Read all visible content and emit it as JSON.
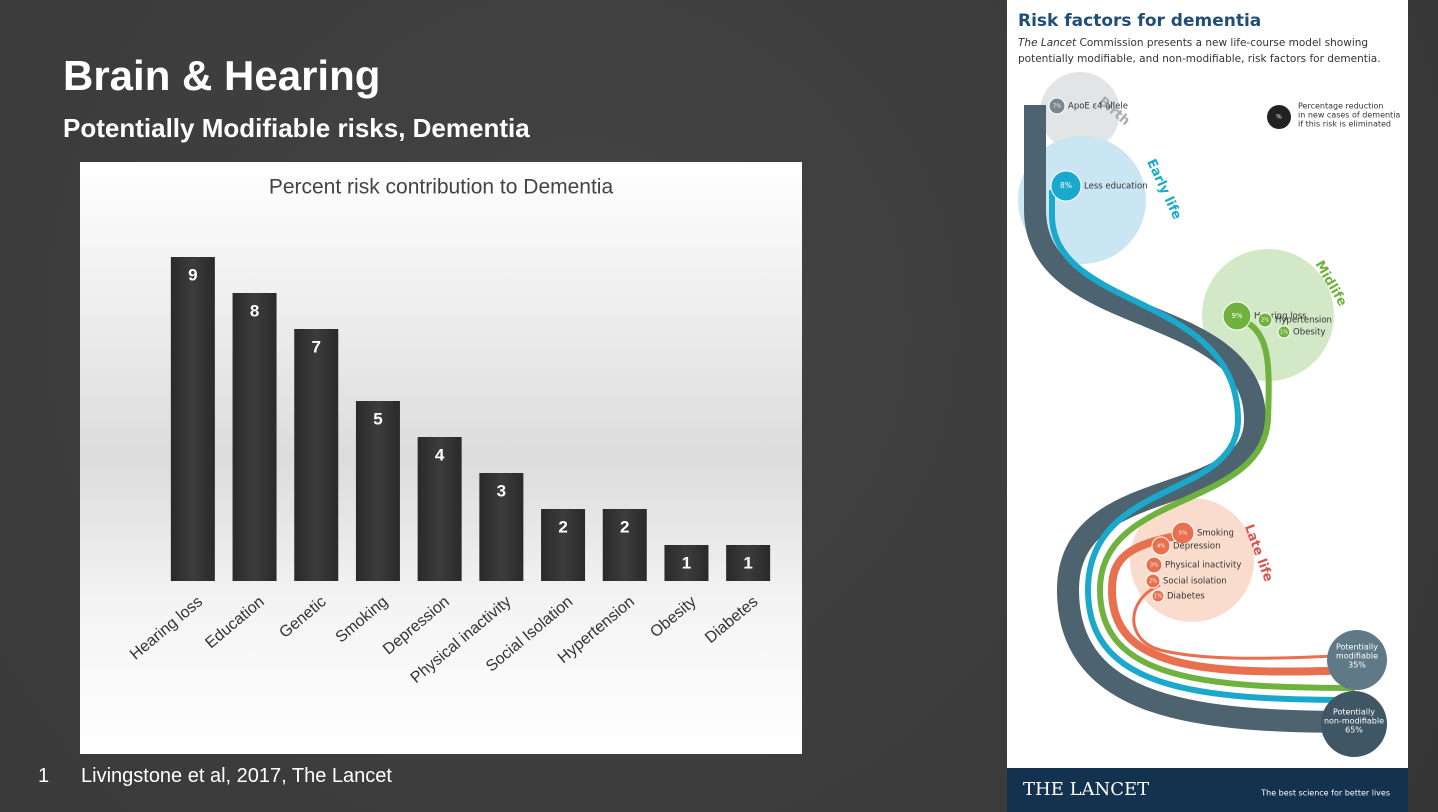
{
  "slide": {
    "title": "Brain & Hearing",
    "subtitle": "Potentially Modifiable risks, Dementia",
    "footnote_number": "1",
    "footnote": "Livingstone et al, 2017, The Lancet"
  },
  "chart_data": {
    "type": "bar",
    "title": "Percent risk contribution to Dementia",
    "categories": [
      "Hearing loss",
      "Education",
      "Genetic",
      "Smoking",
      "Depression",
      "Physical inactivity",
      "Social Isolation",
      "Hypertension",
      "Obesity",
      "Diabetes"
    ],
    "values": [
      9,
      8,
      7,
      5,
      4,
      3,
      2,
      2,
      1,
      1
    ],
    "color": "#333333"
  },
  "infographic": {
    "title": "Risk factors for dementia",
    "intro": {
      "italic": "The Lancet",
      "lines": [
        " Commission presents a new life-course model showing",
        "potentially modifiable, and non-modifiable, risk factors for dementia."
      ]
    },
    "legend": {
      "symbol": "%",
      "lines": [
        "Percentage reduction",
        "in new cases of dementia",
        "if this risk is eliminated"
      ]
    },
    "stages": [
      "Birth",
      "Early life",
      "Midlife",
      "Late life"
    ],
    "factors": [
      {
        "percent": "7%",
        "label": "ApoE ε4 allele"
      },
      {
        "percent": "8%",
        "label": "Less education"
      },
      {
        "percent": "9%",
        "label": "Hearing loss"
      },
      {
        "percent": "2%",
        "label": "Hypertension"
      },
      {
        "percent": "1%",
        "label": "Obesity"
      },
      {
        "percent": "5%",
        "label": "Smoking"
      },
      {
        "percent": "4%",
        "label": "Depression"
      },
      {
        "percent": "3%",
        "label": "Physical inactivity"
      },
      {
        "percent": "2%",
        "label": "Social isolation"
      },
      {
        "percent": "1%",
        "label": "Diabetes"
      }
    ],
    "outcomes": [
      {
        "lines": [
          "Potentially",
          "modifiable",
          "35%"
        ]
      },
      {
        "lines": [
          "Potentially",
          "non-modifiable",
          "65%"
        ]
      }
    ],
    "brand": "THE LANCET",
    "tagline": "The best science for better lives"
  }
}
